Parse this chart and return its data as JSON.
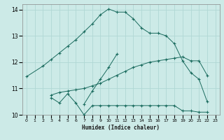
{
  "xlabel": "Humidex (Indice chaleur)",
  "bg_color": "#cceae7",
  "grid_color": "#b0d8d4",
  "line_color": "#1a6b5e",
  "xlim": [
    -0.5,
    23.5
  ],
  "ylim": [
    10.0,
    14.2
  ],
  "yticks": [
    10,
    11,
    12,
    13,
    14
  ],
  "xticks": [
    0,
    1,
    2,
    3,
    4,
    5,
    6,
    7,
    8,
    9,
    10,
    11,
    12,
    13,
    14,
    15,
    16,
    17,
    18,
    19,
    20,
    21,
    22,
    23
  ],
  "series": [
    {
      "x": [
        0,
        2,
        3,
        4,
        5,
        6,
        7,
        8,
        9,
        10,
        11,
        12,
        13,
        14,
        15,
        16,
        17,
        18,
        19,
        20,
        21,
        22
      ],
      "y": [
        11.45,
        11.85,
        12.1,
        12.35,
        12.6,
        12.85,
        13.15,
        13.45,
        13.8,
        14.02,
        13.9,
        13.9,
        13.65,
        13.3,
        13.1,
        13.1,
        13.0,
        12.7,
        12.05,
        11.6,
        11.35,
        10.5
      ]
    },
    {
      "x": [
        3,
        4,
        5,
        6,
        7,
        8,
        9,
        10,
        11,
        12,
        13,
        14,
        15,
        16,
        17,
        18,
        19,
        20,
        21,
        22
      ],
      "y": [
        10.65,
        10.45,
        10.8,
        10.45,
        10.0,
        10.35,
        10.35,
        10.35,
        10.35,
        10.35,
        10.35,
        10.35,
        10.35,
        10.35,
        10.35,
        10.35,
        10.15,
        10.15,
        10.1,
        10.1
      ]
    },
    {
      "x": [
        3,
        4,
        5,
        6,
        7,
        8,
        9,
        10,
        11,
        12,
        13,
        14,
        15,
        16,
        17,
        18,
        19,
        20,
        21,
        22
      ],
      "y": [
        10.75,
        10.85,
        10.9,
        10.95,
        11.0,
        11.1,
        11.2,
        11.35,
        11.5,
        11.65,
        11.8,
        11.9,
        12.0,
        12.05,
        12.1,
        12.15,
        12.2,
        12.05,
        12.05,
        11.5
      ]
    },
    {
      "x": [
        7,
        8,
        9,
        10,
        11
      ],
      "y": [
        10.4,
        10.9,
        11.35,
        11.8,
        12.3
      ]
    }
  ]
}
